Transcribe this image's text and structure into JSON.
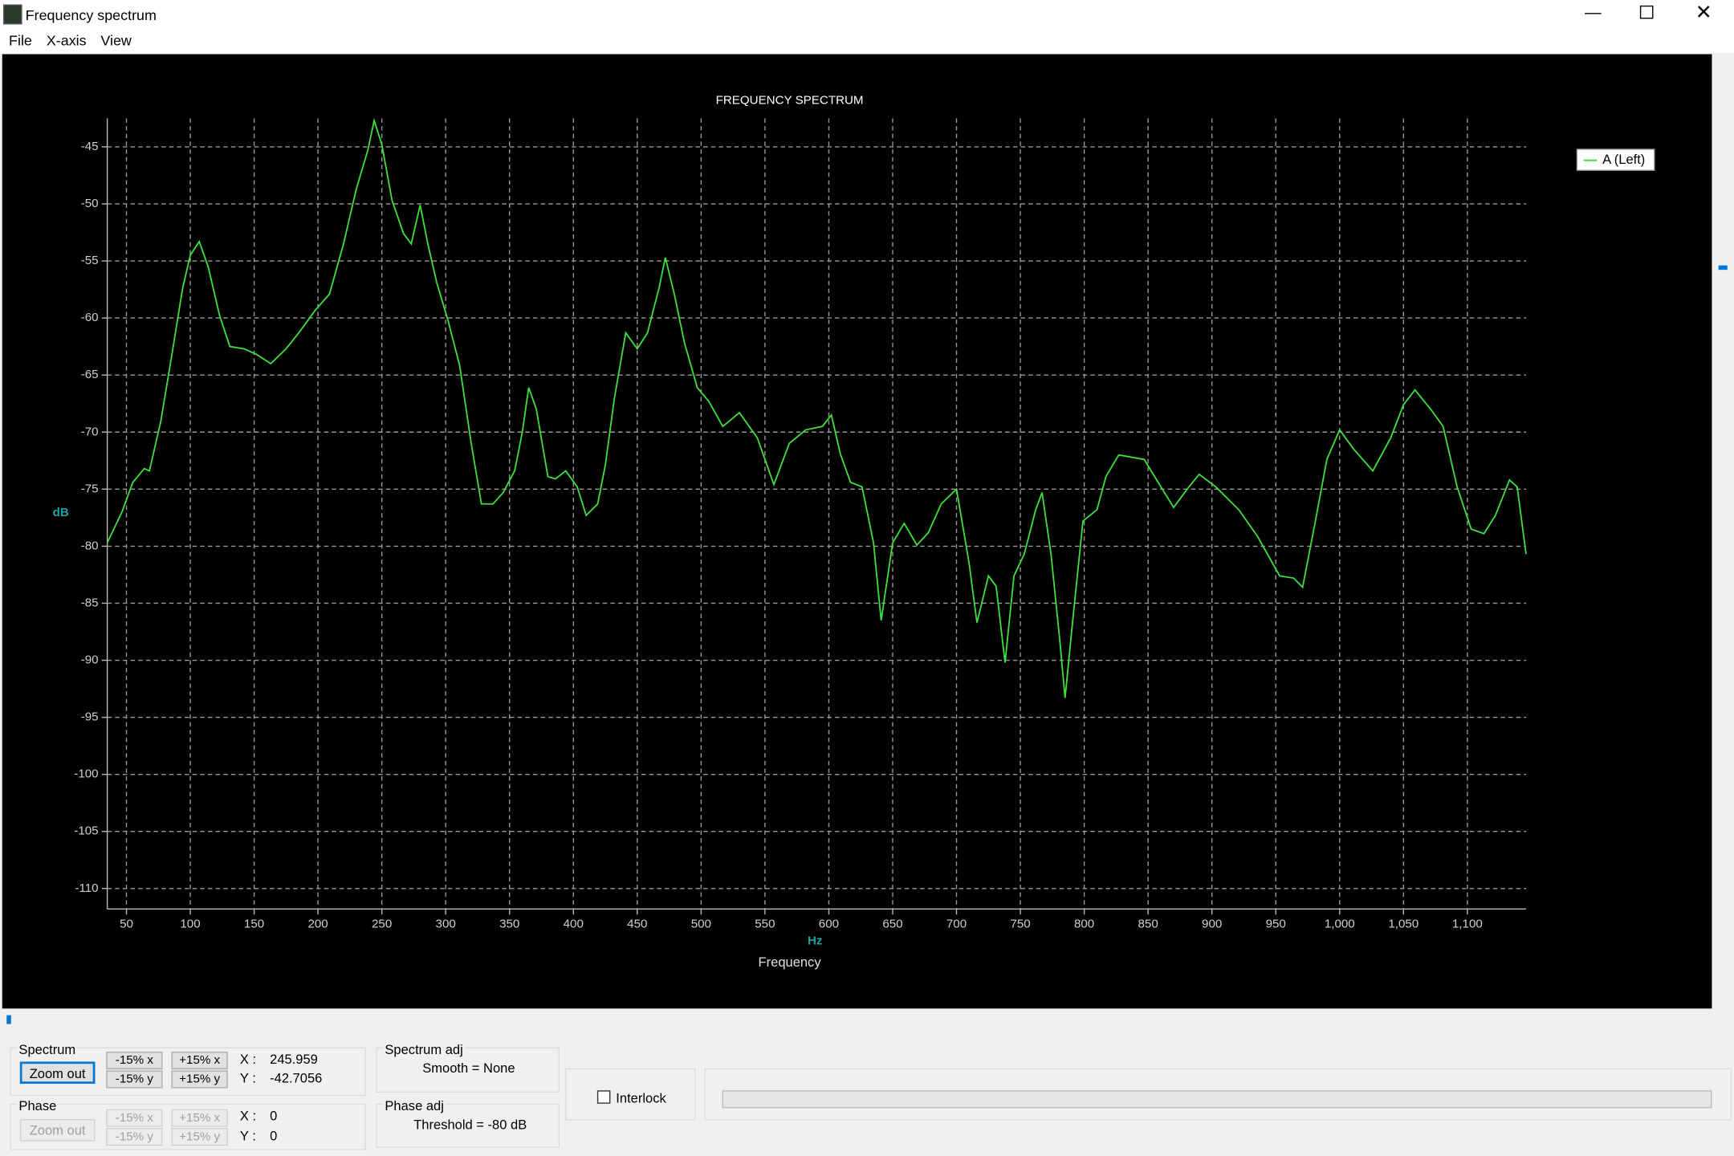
{
  "window": {
    "title": "Frequency spectrum"
  },
  "menu": [
    "File",
    "X-axis",
    "View"
  ],
  "chart_data": {
    "type": "line",
    "title": "FREQUENCY SPECTRUM",
    "xlabel": "Frequency",
    "x_unit": "Hz",
    "ylabel": "dB",
    "x": [
      35,
      46.5,
      55,
      64,
      68,
      77,
      85.6,
      94,
      100,
      107,
      114,
      123,
      131,
      142,
      152,
      163,
      175,
      185,
      198,
      209,
      220,
      230,
      239,
      244,
      250,
      258,
      267,
      273,
      280,
      286,
      293,
      302,
      311,
      320,
      328,
      337,
      345,
      354,
      360,
      365,
      371,
      380,
      386,
      394,
      403,
      410,
      419,
      425,
      432,
      441,
      450,
      458,
      467,
      472,
      479,
      487,
      497,
      506,
      517,
      530,
      544,
      557,
      569,
      582,
      595,
      602,
      609,
      617,
      626,
      635,
      641,
      650,
      659,
      669,
      678,
      688,
      700,
      710,
      716,
      725,
      731,
      738,
      745,
      753,
      762,
      767,
      774,
      781,
      785,
      791,
      799,
      810,
      817,
      827,
      847,
      860,
      870,
      882,
      890,
      903,
      921,
      936,
      953,
      964,
      971,
      981,
      990,
      1000,
      1011,
      1026,
      1040,
      1050,
      1059,
      1072,
      1081,
      1092,
      1103,
      1113,
      1122,
      1133,
      1139,
      1146
    ],
    "series": [
      {
        "name": "A (Left)",
        "color": "#3ee23e",
        "values": [
          -79.7,
          -77,
          -74.4,
          -73.2,
          -73.4,
          -69,
          -63.2,
          -57.4,
          -54.5,
          -53.3,
          -55.5,
          -59.8,
          -62.5,
          -62.7,
          -63.2,
          -64,
          -62.7,
          -61.3,
          -59.3,
          -57.9,
          -53.5,
          -48.7,
          -45.3,
          -42.7,
          -44.8,
          -49.7,
          -52.6,
          -53.5,
          -50.1,
          -53.5,
          -56.9,
          -60.3,
          -64.2,
          -71,
          -76.3,
          -76.3,
          -75.3,
          -73.4,
          -70,
          -66.1,
          -68,
          -73.9,
          -74.1,
          -73.4,
          -74.8,
          -77.3,
          -76.3,
          -72.9,
          -67.1,
          -61.3,
          -62.7,
          -61.3,
          -57.4,
          -54.7,
          -57.9,
          -62.2,
          -66.1,
          -67.3,
          -69.5,
          -68.3,
          -70.5,
          -74.6,
          -71,
          -69.8,
          -69.5,
          -68.5,
          -71.9,
          -74.4,
          -74.8,
          -79.7,
          -86.5,
          -79.7,
          -78,
          -79.9,
          -78.8,
          -76.3,
          -75,
          -81.6,
          -86.7,
          -82.6,
          -83.5,
          -90.2,
          -82.6,
          -80.7,
          -76.8,
          -75.3,
          -80.7,
          -88.4,
          -93.3,
          -86.5,
          -77.8,
          -76.8,
          -73.9,
          -72,
          -72.4,
          -74.8,
          -76.6,
          -74.8,
          -73.7,
          -74.8,
          -76.8,
          -79.2,
          -82.6,
          -82.8,
          -83.6,
          -77.8,
          -72.4,
          -69.8,
          -71.5,
          -73.4,
          -70.5,
          -67.6,
          -66.3,
          -68.1,
          -69.5,
          -74.8,
          -78.5,
          -78.9,
          -77.3,
          -74.2,
          -74.8,
          -80.7
        ]
      }
    ],
    "xlim": [
      35,
      1146
    ],
    "ylim": [
      -111.8,
      -42.5
    ],
    "xticks": [
      50,
      100,
      150,
      200,
      250,
      300,
      350,
      400,
      450,
      500,
      550,
      600,
      650,
      700,
      750,
      800,
      850,
      900,
      950,
      {
        "value": 1000,
        "label": "1,000"
      },
      {
        "value": 1050,
        "label": "1,050"
      },
      {
        "value": 1100,
        "label": "1,100"
      }
    ],
    "yticks": [
      -45,
      -50,
      -55,
      -60,
      -65,
      -70,
      -75,
      -80,
      -85,
      -90,
      -95,
      -100,
      -105,
      -110
    ],
    "grid": true,
    "legend": "right"
  },
  "controls": {
    "spectrum": {
      "label": "Spectrum",
      "zoom_out": "Zoom out",
      "buttons": [
        "-15% x",
        "+15% x",
        "-15% y",
        "+15% y"
      ],
      "x_label": "X :",
      "x_value": 245.959,
      "y_label": "Y :",
      "y_value": -42.7056
    },
    "phase": {
      "label": "Phase",
      "zoom_out": "Zoom out",
      "buttons": [
        "-15% x",
        "+15% x",
        "-15% y",
        "+15% y"
      ],
      "x_label": "X :",
      "x_value": 0,
      "y_label": "Y :",
      "y_value": 0
    },
    "spectrum_adj": {
      "label": "Spectrum adj",
      "text": "Smooth = None"
    },
    "phase_adj": {
      "label": "Phase adj",
      "text": "Threshold = -80 dB"
    },
    "interlock": "Interlock"
  }
}
